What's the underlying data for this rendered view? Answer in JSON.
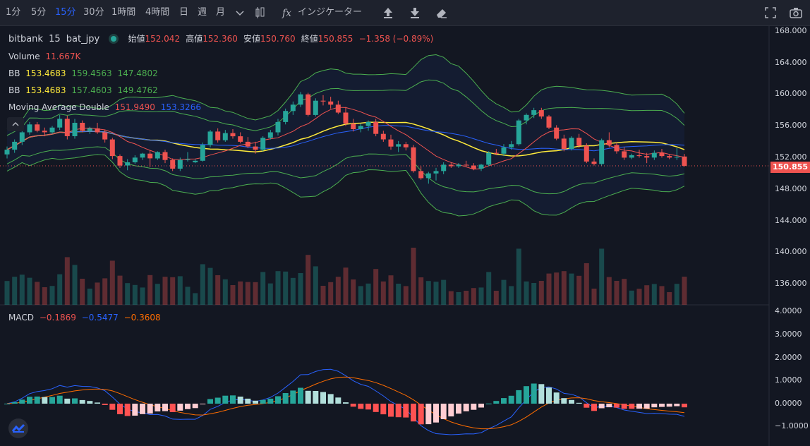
{
  "toolbar": {
    "intervals": [
      "1分",
      "5分",
      "15分",
      "30分",
      "1時間",
      "4時間",
      "日",
      "週",
      "月"
    ],
    "active_interval": "15分",
    "indicators_label": "インジケーター"
  },
  "legend": {
    "exchange": "bitbank",
    "interval": "15",
    "symbol": "bat_jpy",
    "open_label": "始値",
    "open": "152.042",
    "high_label": "高値",
    "high": "152.360",
    "low_label": "安値",
    "low": "150.760",
    "close_label": "終値",
    "close": "150.855",
    "change": "−1.358 (−0.89%)",
    "volume_label": "Volume",
    "volume": "11.667K",
    "bb1_label": "BB",
    "bb1_mid": "153.4683",
    "bb1_upper": "159.4563",
    "bb1_lower": "147.4802",
    "bb2_label": "BB",
    "bb2_mid": "153.4683",
    "bb2_upper": "157.4603",
    "bb2_lower": "149.4762",
    "ma_label": "Moving Average Double",
    "ma_fast": "151.9490",
    "ma_slow": "153.3266",
    "macd_label": "MACD",
    "macd_hist": "−0.1869",
    "macd_line": "−0.5477",
    "macd_signal": "−0.3608"
  },
  "price_axis": [
    "168.000",
    "164.000",
    "160.000",
    "156.000",
    "152.000",
    "148.000",
    "144.000",
    "140.000",
    "136.000"
  ],
  "last_price": "150.855",
  "macd_axis": [
    "4.0000",
    "3.0000",
    "2.0000",
    "1.0000",
    "0.0000",
    "−1.0000"
  ],
  "colors": {
    "up": "#26a69a",
    "down": "#ef5350",
    "bb_outer": "#4caf50",
    "ma_fast": "#ef5350",
    "ma_slow": "#2962ff",
    "mid": "#ffeb3b",
    "macd": "#2962ff",
    "signal": "#ff6d00"
  },
  "chart_data": {
    "type": "candlestick",
    "candles": [
      {
        "o": 152.3,
        "h": 153.3,
        "l": 151.8,
        "c": 152.9
      },
      {
        "o": 152.9,
        "h": 154.2,
        "l": 152.5,
        "c": 153.9
      },
      {
        "o": 153.9,
        "h": 155.3,
        "l": 153.5,
        "c": 155.1
      },
      {
        "o": 155.1,
        "h": 156.4,
        "l": 154.8,
        "c": 156.1
      },
      {
        "o": 156.1,
        "h": 156.4,
        "l": 155.1,
        "c": 155.3
      },
      {
        "o": 155.3,
        "h": 155.7,
        "l": 154.6,
        "c": 155.1
      },
      {
        "o": 155.1,
        "h": 155.9,
        "l": 154.9,
        "c": 155.7
      },
      {
        "o": 155.7,
        "h": 157.3,
        "l": 155.4,
        "c": 156.8
      },
      {
        "o": 156.8,
        "h": 157.2,
        "l": 154.2,
        "c": 154.6
      },
      {
        "o": 154.6,
        "h": 156.8,
        "l": 154.3,
        "c": 156.3
      },
      {
        "o": 156.3,
        "h": 156.6,
        "l": 155.1,
        "c": 155.3
      },
      {
        "o": 155.3,
        "h": 155.8,
        "l": 154.9,
        "c": 155.6
      },
      {
        "o": 155.6,
        "h": 156.3,
        "l": 154.9,
        "c": 155.1
      },
      {
        "o": 155.1,
        "h": 155.4,
        "l": 153.8,
        "c": 154.2
      },
      {
        "o": 154.2,
        "h": 154.4,
        "l": 151.7,
        "c": 152.1
      },
      {
        "o": 152.1,
        "h": 152.3,
        "l": 150.6,
        "c": 150.9
      },
      {
        "o": 150.9,
        "h": 151.7,
        "l": 150.3,
        "c": 151.3
      },
      {
        "o": 151.3,
        "h": 152.2,
        "l": 151.1,
        "c": 151.9
      },
      {
        "o": 151.9,
        "h": 152.5,
        "l": 151.6,
        "c": 152.4
      },
      {
        "o": 152.4,
        "h": 152.8,
        "l": 150.7,
        "c": 151.8
      },
      {
        "o": 151.8,
        "h": 152.7,
        "l": 151.6,
        "c": 152.6
      },
      {
        "o": 152.6,
        "h": 152.9,
        "l": 151.2,
        "c": 151.6
      },
      {
        "o": 151.6,
        "h": 151.8,
        "l": 150.2,
        "c": 150.5
      },
      {
        "o": 150.5,
        "h": 151.9,
        "l": 150.2,
        "c": 151.6
      },
      {
        "o": 151.6,
        "h": 152.6,
        "l": 151.4,
        "c": 151.7
      },
      {
        "o": 151.3,
        "h": 151.7,
        "l": 151.2,
        "c": 151.5
      },
      {
        "o": 151.5,
        "h": 153.8,
        "l": 151.4,
        "c": 153.5
      },
      {
        "o": 153.5,
        "h": 155.4,
        "l": 153.2,
        "c": 155.2
      },
      {
        "o": 155.2,
        "h": 155.6,
        "l": 153.8,
        "c": 154.1
      },
      {
        "o": 154.1,
        "h": 155.4,
        "l": 153.9,
        "c": 155.0
      },
      {
        "o": 155.0,
        "h": 155.5,
        "l": 154.3,
        "c": 154.6
      },
      {
        "o": 154.6,
        "h": 155.1,
        "l": 153.7,
        "c": 153.9
      },
      {
        "o": 153.9,
        "h": 154.5,
        "l": 153.1,
        "c": 153.3
      },
      {
        "o": 153.3,
        "h": 153.9,
        "l": 152.4,
        "c": 152.9
      },
      {
        "o": 152.9,
        "h": 154.6,
        "l": 152.7,
        "c": 154.4
      },
      {
        "o": 154.4,
        "h": 155.4,
        "l": 154.2,
        "c": 155.1
      },
      {
        "o": 155.1,
        "h": 156.8,
        "l": 154.7,
        "c": 156.4
      },
      {
        "o": 156.4,
        "h": 158.1,
        "l": 156.1,
        "c": 157.8
      },
      {
        "o": 157.8,
        "h": 159.0,
        "l": 157.3,
        "c": 158.6
      },
      {
        "o": 158.6,
        "h": 160.2,
        "l": 158.3,
        "c": 159.9
      },
      {
        "o": 159.9,
        "h": 160.1,
        "l": 157.1,
        "c": 157.3
      },
      {
        "o": 157.3,
        "h": 159.4,
        "l": 157.1,
        "c": 159.1
      },
      {
        "o": 159.1,
        "h": 159.8,
        "l": 158.5,
        "c": 159.0
      },
      {
        "o": 159.0,
        "h": 159.6,
        "l": 158.1,
        "c": 158.6
      },
      {
        "o": 158.6,
        "h": 159.1,
        "l": 157.4,
        "c": 157.6
      },
      {
        "o": 157.6,
        "h": 158.3,
        "l": 155.9,
        "c": 156.2
      },
      {
        "o": 156.2,
        "h": 156.8,
        "l": 155.2,
        "c": 155.5
      },
      {
        "o": 155.5,
        "h": 156.2,
        "l": 155.1,
        "c": 155.9
      },
      {
        "o": 155.9,
        "h": 156.6,
        "l": 155.3,
        "c": 156.4
      },
      {
        "o": 156.4,
        "h": 156.8,
        "l": 154.6,
        "c": 154.9
      },
      {
        "o": 154.9,
        "h": 155.3,
        "l": 153.9,
        "c": 154.2
      },
      {
        "o": 154.2,
        "h": 154.8,
        "l": 152.9,
        "c": 153.3
      },
      {
        "o": 153.3,
        "h": 154.0,
        "l": 152.6,
        "c": 153.6
      },
      {
        "o": 153.6,
        "h": 153.9,
        "l": 152.8,
        "c": 153.2
      },
      {
        "o": 153.2,
        "h": 153.5,
        "l": 150.0,
        "c": 150.2
      },
      {
        "o": 150.2,
        "h": 150.8,
        "l": 149.1,
        "c": 149.3
      },
      {
        "o": 149.3,
        "h": 150.1,
        "l": 148.6,
        "c": 149.9
      },
      {
        "o": 149.9,
        "h": 150.6,
        "l": 149.0,
        "c": 150.2
      },
      {
        "o": 150.2,
        "h": 151.3,
        "l": 149.8,
        "c": 151.0
      },
      {
        "o": 151.0,
        "h": 151.3,
        "l": 150.6,
        "c": 150.8
      },
      {
        "o": 150.8,
        "h": 151.2,
        "l": 150.6,
        "c": 151.0
      },
      {
        "o": 151.0,
        "h": 151.5,
        "l": 150.7,
        "c": 150.9
      },
      {
        "o": 150.9,
        "h": 151.2,
        "l": 150.3,
        "c": 150.5
      },
      {
        "o": 150.5,
        "h": 151.1,
        "l": 150.2,
        "c": 151.0
      },
      {
        "o": 151.0,
        "h": 152.7,
        "l": 150.8,
        "c": 152.5
      },
      {
        "o": 152.5,
        "h": 153.0,
        "l": 152.2,
        "c": 152.4
      },
      {
        "o": 152.4,
        "h": 153.6,
        "l": 152.1,
        "c": 153.2
      },
      {
        "o": 153.2,
        "h": 154.0,
        "l": 152.9,
        "c": 153.6
      },
      {
        "o": 153.6,
        "h": 156.8,
        "l": 153.4,
        "c": 156.6
      },
      {
        "o": 156.6,
        "h": 157.5,
        "l": 156.1,
        "c": 157.3
      },
      {
        "o": 157.3,
        "h": 158.2,
        "l": 156.9,
        "c": 157.9
      },
      {
        "o": 157.9,
        "h": 158.2,
        "l": 156.8,
        "c": 157.1
      },
      {
        "o": 157.1,
        "h": 157.3,
        "l": 155.5,
        "c": 155.7
      },
      {
        "o": 155.7,
        "h": 156.0,
        "l": 154.1,
        "c": 154.3
      },
      {
        "o": 154.3,
        "h": 154.8,
        "l": 152.7,
        "c": 153.0
      },
      {
        "o": 153.0,
        "h": 154.6,
        "l": 152.8,
        "c": 154.4
      },
      {
        "o": 154.4,
        "h": 154.9,
        "l": 153.1,
        "c": 153.4
      },
      {
        "o": 153.4,
        "h": 153.7,
        "l": 151.2,
        "c": 151.4
      },
      {
        "o": 151.4,
        "h": 151.8,
        "l": 150.9,
        "c": 151.1
      },
      {
        "o": 151.1,
        "h": 154.3,
        "l": 150.9,
        "c": 154.1
      },
      {
        "o": 154.1,
        "h": 155.1,
        "l": 153.2,
        "c": 153.5
      },
      {
        "o": 153.5,
        "h": 153.8,
        "l": 152.4,
        "c": 152.7
      },
      {
        "o": 152.7,
        "h": 153.2,
        "l": 151.6,
        "c": 151.9
      },
      {
        "o": 151.9,
        "h": 152.4,
        "l": 151.7,
        "c": 152.2
      },
      {
        "o": 152.2,
        "h": 152.9,
        "l": 151.9,
        "c": 152.1
      },
      {
        "o": 152.1,
        "h": 152.5,
        "l": 151.2,
        "c": 151.9
      },
      {
        "o": 151.9,
        "h": 152.8,
        "l": 151.6,
        "c": 152.5
      },
      {
        "o": 152.5,
        "h": 153.0,
        "l": 151.9,
        "c": 152.1
      },
      {
        "o": 152.1,
        "h": 152.3,
        "l": 151.7,
        "c": 151.9
      },
      {
        "o": 151.9,
        "h": 153.1,
        "l": 151.6,
        "c": 152.0
      },
      {
        "o": 152.04,
        "h": 152.36,
        "l": 150.76,
        "c": 150.855
      }
    ]
  }
}
